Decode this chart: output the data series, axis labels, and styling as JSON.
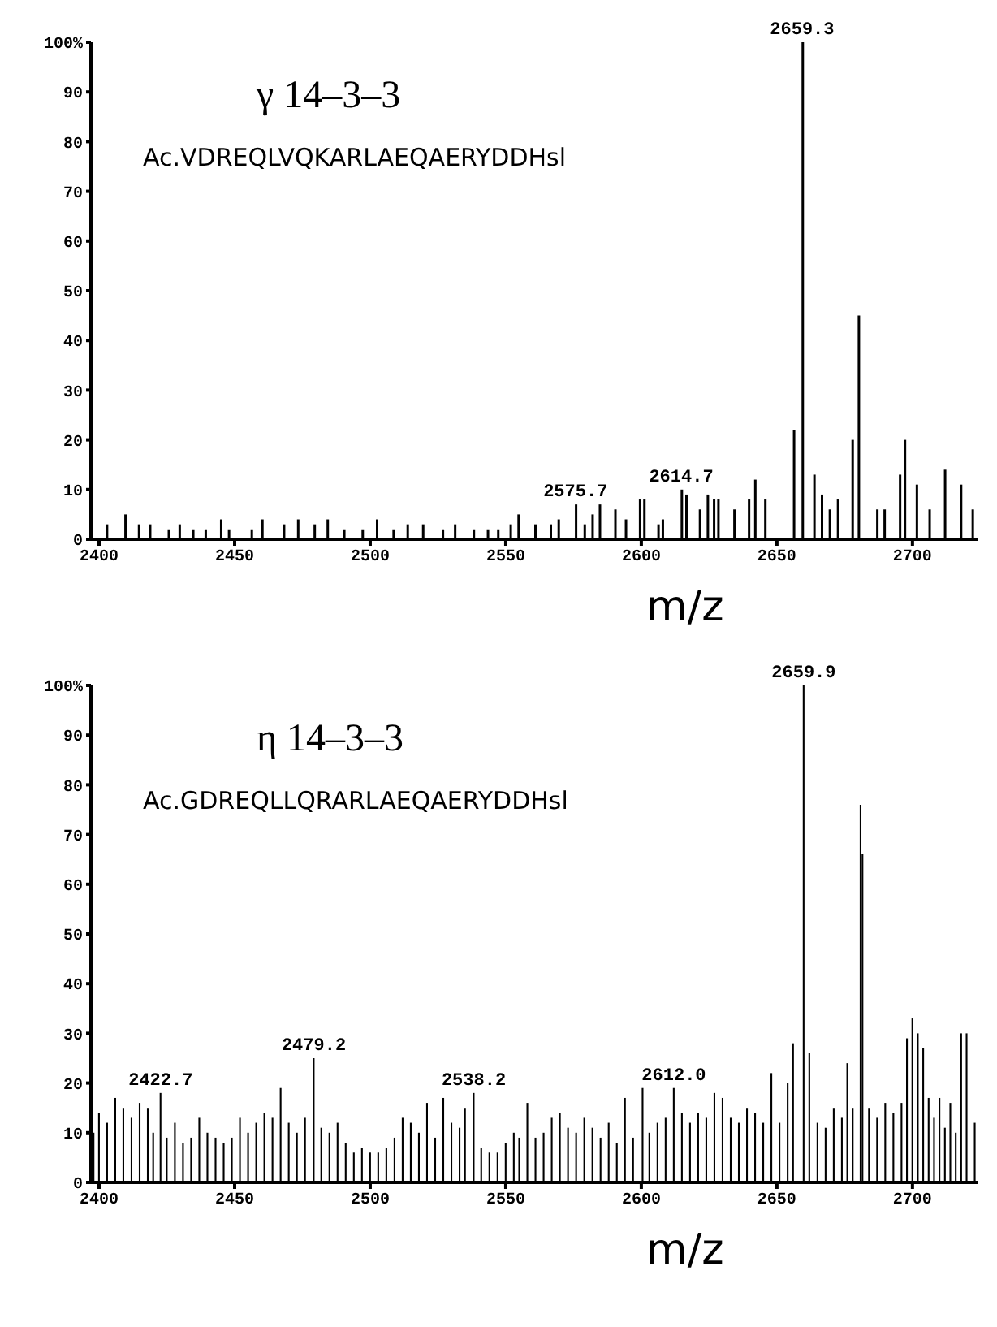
{
  "chart_data": [
    {
      "type": "bar",
      "title": "γ 14–3–3",
      "subtitle": "Ac.VDREQLVQKARLAEQAERYDDHsl",
      "xlabel": "m/z",
      "color": "#000000",
      "x": [
        2402.7,
        2409.5,
        2414.5,
        2418.6,
        2425.5,
        2429.5,
        2434.5,
        2439.1,
        2444.8,
        2447.7,
        2456.1,
        2460,
        2468,
        2473.2,
        2479.3,
        2484.1,
        2490.2,
        2497,
        2502.3,
        2508.4,
        2513.6,
        2519.3,
        2526.6,
        2531.1,
        2538,
        2543.2,
        2547,
        2551.6,
        2554.5,
        2560.7,
        2566.4,
        2569.3,
        2575.7,
        2578.9,
        2581.8,
        2584.5,
        2590.2,
        2594.1,
        2599.3,
        2600.9,
        2606.1,
        2607.7,
        2614.7,
        2616.4,
        2621.4,
        2624.3,
        2626.6,
        2628.2,
        2634.1,
        2639.5,
        2641.8,
        2645.5,
        2656.1,
        2659.3,
        2663.6,
        2666.4,
        2669.3,
        2672.3,
        2677.7,
        2680,
        2686.8,
        2689.5,
        2695.2,
        2697,
        2701.4,
        2706.1,
        2711.8,
        2717.7,
        2722
      ],
      "values": [
        3,
        5,
        3,
        3,
        2,
        3,
        2,
        2,
        4,
        2,
        2,
        4,
        3,
        4,
        3,
        4,
        2,
        2,
        4,
        2,
        3,
        3,
        2,
        3,
        2,
        2,
        2,
        3,
        5,
        3,
        3,
        4,
        7,
        3,
        5,
        7,
        6,
        4,
        8,
        8,
        3,
        4,
        10,
        9,
        6,
        9,
        8,
        8,
        6,
        8,
        12,
        8,
        22,
        100,
        13,
        9,
        6,
        8,
        20,
        45,
        6,
        6,
        13,
        20,
        11,
        6,
        14,
        11,
        6
      ],
      "xlim": [
        2397,
        2724
      ],
      "xticks": [
        2400,
        2450,
        2500,
        2550,
        2600,
        2650,
        2700
      ],
      "ylim": [
        0,
        100
      ],
      "yticks": [
        0,
        10,
        20,
        30,
        40,
        50,
        60,
        70,
        80,
        90,
        {
          "value": 100,
          "label": "100%"
        }
      ],
      "grid": false,
      "annotations": [
        {
          "text": "2575.7",
          "x": 2575.7,
          "y": 7
        },
        {
          "text": "2614.7",
          "x": 2614.7,
          "y": 10
        },
        {
          "text": "2659.3",
          "x": 2659.3,
          "y": 100
        }
      ]
    },
    {
      "type": "bar",
      "title": "η 14–3–3",
      "subtitle": "Ac.GDREQLLQRARLAEQAERYDDHsl",
      "xlabel": "m/z",
      "color": "#000000",
      "x": [
        2398,
        2400,
        2403,
        2406,
        2409,
        2412,
        2415,
        2418,
        2420,
        2422.7,
        2425,
        2428,
        2431,
        2434,
        2437,
        2440,
        2443,
        2446,
        2449,
        2452,
        2455,
        2458,
        2461,
        2464,
        2467,
        2470,
        2473,
        2476,
        2479.2,
        2482,
        2485,
        2488,
        2491,
        2494,
        2497,
        2500,
        2503,
        2506,
        2509,
        2512,
        2515,
        2518,
        2521,
        2524,
        2527,
        2530,
        2533,
        2535,
        2538.2,
        2541,
        2544,
        2547,
        2550,
        2553,
        2555,
        2558,
        2561,
        2564,
        2567,
        2570,
        2573,
        2576,
        2579,
        2582,
        2585,
        2588,
        2591,
        2594,
        2597,
        2600.5,
        2603,
        2606,
        2609,
        2612,
        2615,
        2618,
        2621,
        2624,
        2627,
        2630,
        2633,
        2636,
        2639,
        2642,
        2645,
        2648,
        2651,
        2654,
        2656,
        2659.9,
        2662,
        2665,
        2668,
        2671,
        2674,
        2676,
        2678,
        2680.9,
        2681.6,
        2684,
        2687,
        2690,
        2693,
        2696,
        2698,
        2700,
        2702,
        2704,
        2706,
        2708,
        2710,
        2712,
        2714,
        2716,
        2718,
        2720,
        2723
      ],
      "values": [
        10,
        14,
        12,
        17,
        15,
        13,
        16,
        15,
        10,
        18,
        9,
        12,
        8,
        9,
        13,
        10,
        9,
        8,
        9,
        13,
        10,
        12,
        14,
        13,
        19,
        12,
        10,
        13,
        25,
        11,
        10,
        12,
        8,
        6,
        7,
        6,
        6,
        7,
        9,
        13,
        12,
        10,
        16,
        9,
        17,
        12,
        11,
        15,
        18,
        7,
        6,
        6,
        8,
        10,
        9,
        16,
        9,
        10,
        13,
        14,
        11,
        10,
        13,
        11,
        9,
        12,
        8,
        17,
        9,
        19,
        10,
        12,
        13,
        19,
        14,
        12,
        14,
        13,
        18,
        17,
        13,
        12,
        15,
        14,
        12,
        22,
        12,
        20,
        28,
        100,
        26,
        12,
        11,
        15,
        13,
        24,
        15,
        76,
        66,
        15,
        13,
        16,
        14,
        16,
        29,
        33,
        30,
        27,
        17,
        13,
        17,
        11,
        16,
        10,
        30,
        30,
        12
      ],
      "xlim": [
        2397,
        2724
      ],
      "xticks": [
        2400,
        2450,
        2500,
        2550,
        2600,
        2650,
        2700
      ],
      "ylim": [
        0,
        100
      ],
      "yticks": [
        0,
        10,
        20,
        30,
        40,
        50,
        60,
        70,
        80,
        90,
        {
          "value": 100,
          "label": "100%"
        }
      ],
      "grid": false,
      "annotations": [
        {
          "text": "2422.7",
          "x": 2422.7,
          "y": 18
        },
        {
          "text": "2479.2",
          "x": 2479.2,
          "y": 25
        },
        {
          "text": "2538.2",
          "x": 2538.2,
          "y": 18
        },
        {
          "text": "2612.0",
          "x": 2612,
          "y": 19
        },
        {
          "text": "2659.9",
          "x": 2659.9,
          "y": 100
        }
      ]
    }
  ]
}
